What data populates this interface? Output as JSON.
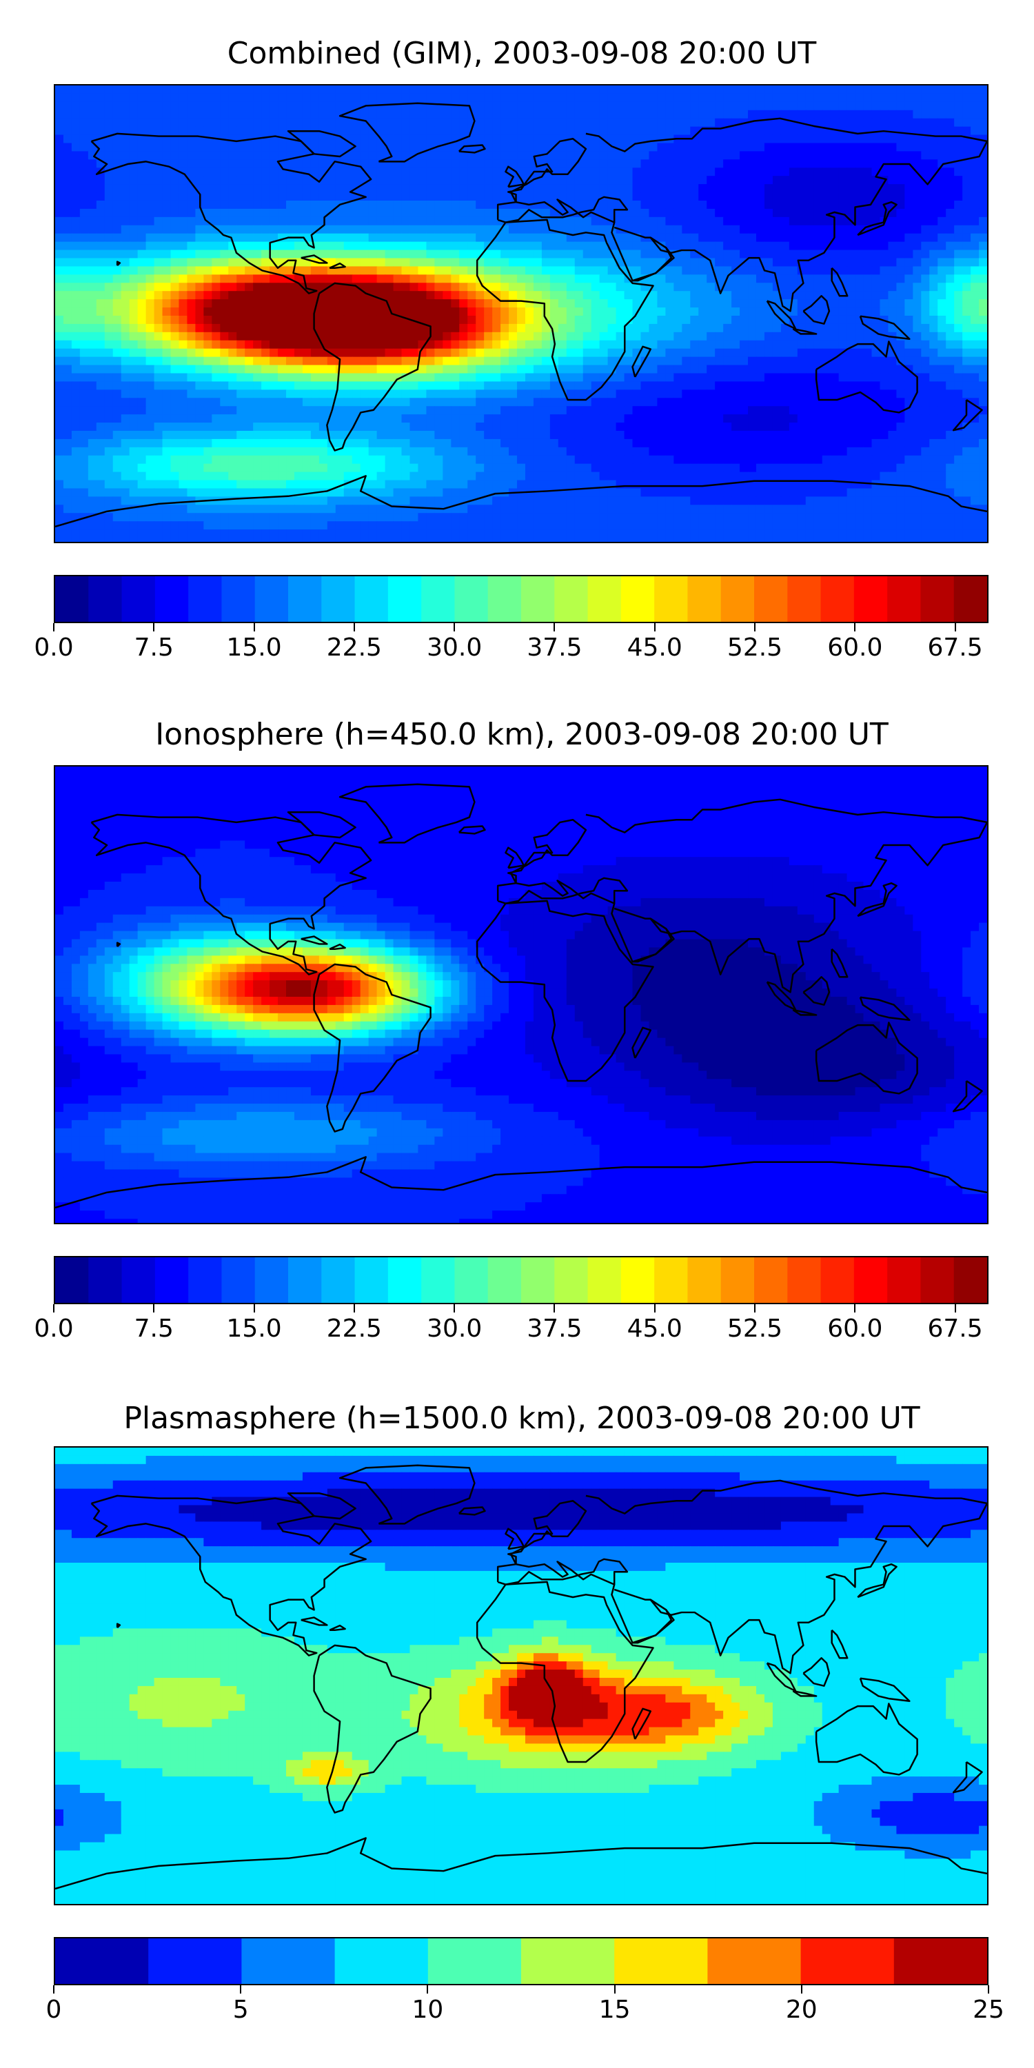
{
  "chart_data": [
    {
      "type": "heatmap",
      "title": "Combined (GIM), 2003-09-08 20:00 UT",
      "colorbar": {
        "levels": 28,
        "min": 0.0,
        "max": 70.0,
        "tick_values": [
          0.0,
          7.5,
          15.0,
          22.5,
          30.0,
          37.5,
          45.0,
          52.5,
          60.0,
          67.5
        ],
        "tick_labels": [
          "0.0",
          "7.5",
          "15.0",
          "22.5",
          "30.0",
          "37.5",
          "45.0",
          "52.5",
          "60.0",
          "67.5"
        ],
        "orientation": "horizontal"
      },
      "field": {
        "background": 14,
        "features": [
          {
            "lon": -60,
            "lat": -3,
            "value": 69,
            "sigma_lon": 38,
            "sigma_lat": 14
          },
          {
            "lon": -110,
            "lat": 2,
            "value": 52,
            "sigma_lon": 40,
            "sigma_lat": 14
          },
          {
            "lon": -10,
            "lat": 0,
            "value": 30,
            "sigma_lon": 60,
            "sigma_lat": 18
          },
          {
            "lon": 120,
            "lat": 45,
            "value": 6,
            "sigma_lon": 45,
            "sigma_lat": 20
          },
          {
            "lon": 90,
            "lat": -40,
            "value": 7,
            "sigma_lon": 60,
            "sigma_lat": 20
          },
          {
            "lon": -100,
            "lat": -60,
            "value": 32,
            "sigma_lon": 50,
            "sigma_lat": 10
          },
          {
            "lon": 175,
            "lat": 5,
            "value": 26,
            "sigma_lon": 15,
            "sigma_lat": 15
          }
        ]
      }
    },
    {
      "type": "heatmap",
      "title": "Ionosphere  (h=450.0 km), 2003-09-08 20:00 UT",
      "colorbar": {
        "levels": 28,
        "min": 0.0,
        "max": 70.0,
        "tick_values": [
          0.0,
          7.5,
          15.0,
          22.5,
          30.0,
          37.5,
          45.0,
          52.5,
          60.0,
          67.5
        ],
        "tick_labels": [
          "0.0",
          "7.5",
          "15.0",
          "22.5",
          "30.0",
          "37.5",
          "45.0",
          "52.5",
          "60.0",
          "67.5"
        ],
        "orientation": "horizontal"
      },
      "field": {
        "background": 10,
        "features": [
          {
            "lon": -78,
            "lat": 2,
            "value": 58,
            "sigma_lon": 32,
            "sigma_lat": 12
          },
          {
            "lon": -120,
            "lat": 5,
            "value": 30,
            "sigma_lon": 35,
            "sigma_lat": 15
          },
          {
            "lon": 70,
            "lat": 10,
            "value": 2,
            "sigma_lon": 60,
            "sigma_lat": 30
          },
          {
            "lon": 120,
            "lat": -30,
            "value": 3,
            "sigma_lon": 50,
            "sigma_lat": 20
          },
          {
            "lon": -100,
            "lat": -55,
            "value": 20,
            "sigma_lon": 60,
            "sigma_lat": 10
          }
        ]
      }
    },
    {
      "type": "heatmap",
      "title": "Plasmasphere (h=1500.0 km), 2003-09-08 20:00 UT",
      "colorbar": {
        "levels": 10,
        "min": 0,
        "max": 25,
        "tick_values": [
          0,
          5,
          10,
          15,
          20,
          25
        ],
        "tick_labels": [
          "0",
          "5",
          "10",
          "15",
          "20",
          "25"
        ],
        "orientation": "horizontal"
      },
      "field": {
        "background": 9,
        "features": [
          {
            "lon": 15,
            "lat": -15,
            "value": 18.5,
            "sigma_lon": 40,
            "sigma_lat": 15
          },
          {
            "lon": 10,
            "lat": -5,
            "value": 21,
            "sigma_lon": 12,
            "sigma_lat": 10
          },
          {
            "lon": -130,
            "lat": -10,
            "value": 13,
            "sigma_lon": 40,
            "sigma_lat": 18
          },
          {
            "lon": 60,
            "lat": -15,
            "value": 16,
            "sigma_lon": 25,
            "sigma_lat": 10
          },
          {
            "lon": -75,
            "lat": -38,
            "value": 16,
            "sigma_lon": 12,
            "sigma_lat": 5
          },
          {
            "lon": 160,
            "lat": -55,
            "value": 3.5,
            "sigma_lon": 30,
            "sigma_lat": 10
          },
          {
            "lon": 0,
            "lat": 65,
            "value": 0.5,
            "sigma_lon": 180,
            "sigma_lat": 12
          }
        ]
      }
    }
  ]
}
